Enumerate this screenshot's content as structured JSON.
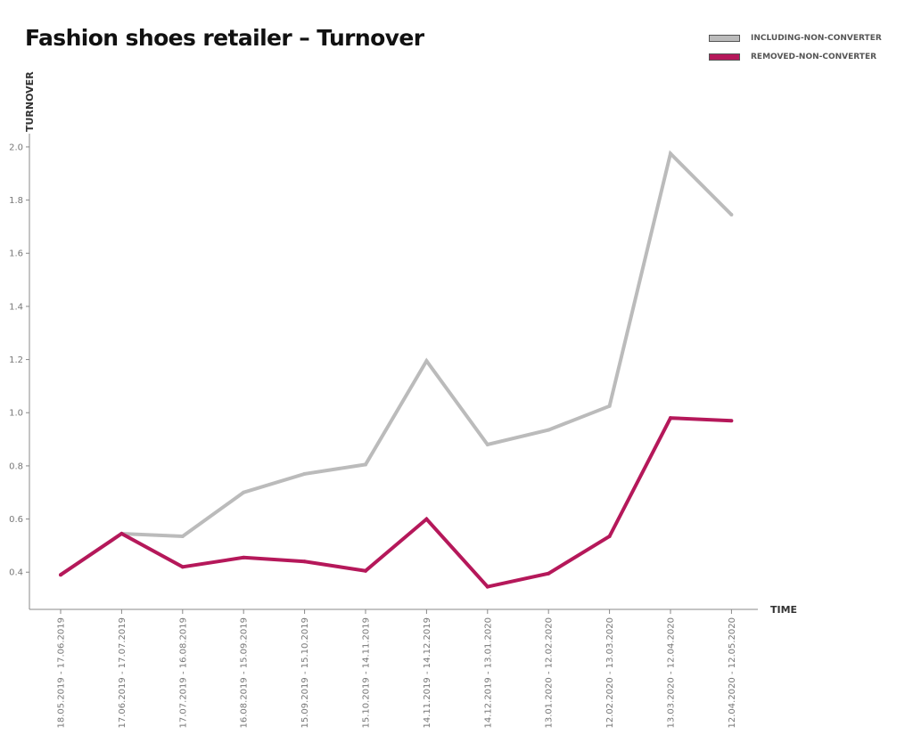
{
  "chart_data": {
    "type": "line",
    "title": "Fashion shoes retailer – Turnover",
    "xlabel": "TIME",
    "ylabel": "TURNOVER",
    "categories": [
      "18.05.2019 - 17.06.2019",
      "17.06.2019 - 17.07.2019",
      "17.07.2019 - 16.08.2019",
      "16.08.2019 - 15.09.2019",
      "15.09.2019 - 15.10.2019",
      "15.10.2019 - 14.11.2019",
      "14.11.2019 - 14.12.2019",
      "14.12.2019 - 13.01.2020",
      "13.01.2020 - 12.02.2020",
      "12.02.2020 - 13.03.2020",
      "13.03.2020 - 12.04.2020",
      "12.04.2020 - 12.05.2020"
    ],
    "ylim": [
      0.26,
      2.05
    ],
    "yticks": [
      "0.4",
      "0.6",
      "0.8",
      "1.0",
      "1.2",
      "1.4",
      "1.6",
      "1.8",
      "2.0"
    ],
    "grid": false,
    "legend_position": "top-right",
    "series": [
      {
        "name": "INCLUDING-NON-CONVERTER",
        "color": "#bbbbbb",
        "values": [
          0.39,
          0.545,
          0.535,
          0.7,
          0.77,
          0.805,
          1.195,
          0.88,
          0.935,
          1.025,
          1.975,
          1.745
        ]
      },
      {
        "name": "REMOVED-NON-CONVERTER",
        "color": "#b5185a",
        "values": [
          0.39,
          0.545,
          0.42,
          0.455,
          0.44,
          0.405,
          0.6,
          0.345,
          0.395,
          0.535,
          0.98,
          0.97
        ]
      }
    ]
  }
}
